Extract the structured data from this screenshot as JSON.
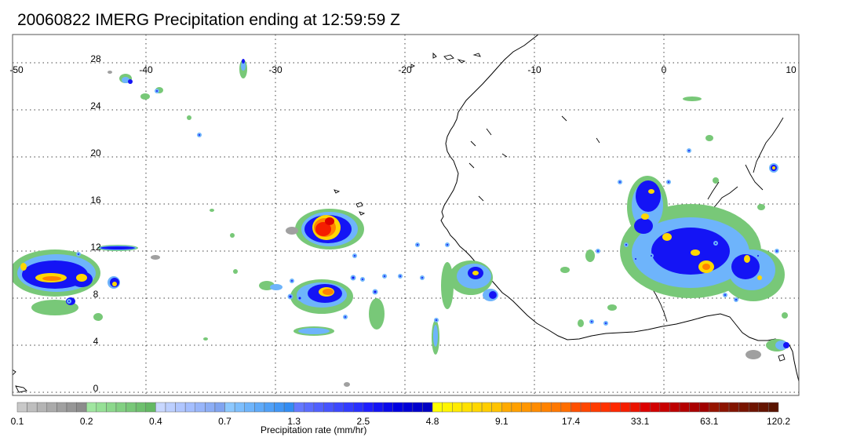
{
  "title": "20060822 IMERG Precipitation ending at 12:59:59 Z",
  "map": {
    "lon_range": [
      -50,
      10
    ],
    "lat_range": [
      -0.5,
      29.5
    ],
    "lon_ticks": [
      "-50",
      "-40",
      "-30",
      "-20",
      "-10",
      "0",
      "10"
    ],
    "lat_ticks": [
      "28",
      "24",
      "20",
      "16",
      "12",
      "8",
      "4",
      "0"
    ],
    "grid": "dotted",
    "coastline_color": "#000000"
  },
  "colorbar": {
    "label": "Precipitation rate (mm/hr)",
    "tick_labels": [
      "0.1",
      "0.2",
      "0.4",
      "0.7",
      "1.3",
      "2.5",
      "4.8",
      "9.1",
      "17.4",
      "33.1",
      "63.1",
      "120.2"
    ],
    "groups": [
      {
        "range": "0.1-0.2",
        "colors": [
          "#c8c8c8",
          "#bebebe",
          "#b4b4b4",
          "#aaaaaa",
          "#a0a0a0",
          "#969696",
          "#8c8c8c"
        ]
      },
      {
        "range": "0.2-0.4",
        "colors": [
          "#a0e6a0",
          "#96e096",
          "#8cd88c",
          "#82d082",
          "#78c878",
          "#6ec06e",
          "#64b864"
        ]
      },
      {
        "range": "0.4-0.7",
        "colors": [
          "#c8d7ff",
          "#bccfff",
          "#b0c6ff",
          "#a4beff",
          "#98b5fa",
          "#8cadf5",
          "#80a4f0"
        ]
      },
      {
        "range": "0.7-1.3",
        "colors": [
          "#8cc8ff",
          "#7dbefd",
          "#6eb4fb",
          "#5faaf9",
          "#50a0f7",
          "#4196f5",
          "#328cf3"
        ]
      },
      {
        "range": "1.3-2.5",
        "colors": [
          "#6478ff",
          "#5a6cff",
          "#5060ff",
          "#4654ff",
          "#3c48ff",
          "#323cff",
          "#2830ff"
        ]
      },
      {
        "range": "2.5-4.8",
        "colors": [
          "#1e1eff",
          "#1414f5",
          "#0a0aeb",
          "#0000e1",
          "#0000d7",
          "#0000cd",
          "#0000c3"
        ]
      },
      {
        "range": "4.8-9.1",
        "colors": [
          "#ffff00",
          "#fff500",
          "#ffeb00",
          "#ffe100",
          "#ffd700",
          "#ffcd00",
          "#ffc300"
        ]
      },
      {
        "range": "9.1-17.4",
        "colors": [
          "#ffaa00",
          "#ffa000",
          "#ff9600",
          "#ff8c00",
          "#ff8200",
          "#ff7800",
          "#ff6e00"
        ]
      },
      {
        "range": "17.4-33.1",
        "colors": [
          "#ff5000",
          "#ff4600",
          "#ff3c00",
          "#ff3200",
          "#ff2800",
          "#f51e00",
          "#eb1400"
        ]
      },
      {
        "range": "33.1-63.1",
        "colors": [
          "#dc0000",
          "#d20000",
          "#c80000",
          "#be0000",
          "#b40000",
          "#aa0000",
          "#a00000"
        ]
      },
      {
        "range": "63.1-120.2",
        "colors": [
          "#961400",
          "#8c1400",
          "#821400",
          "#781400",
          "#6e1400",
          "#641400",
          "#5a1400"
        ]
      }
    ]
  },
  "precipitation_cells": [
    {
      "lon": -29.5,
      "lat": 13.5,
      "peak_mm_hr": 33.1
    },
    {
      "lon": -25.5,
      "lat": 8.6,
      "peak_mm_hr": 9.1
    },
    {
      "lon": -44.5,
      "lat": 9.5,
      "peak_mm_hr": 9.1
    },
    {
      "lon": -48.5,
      "lat": 10.5,
      "peak_mm_hr": 4.8
    },
    {
      "lon": -42.0,
      "lat": 12.1,
      "peak_mm_hr": 4.8
    },
    {
      "lon": -40.0,
      "lat": 9.5,
      "peak_mm_hr": 4.8
    },
    {
      "lon": -14.5,
      "lat": 10.2,
      "peak_mm_hr": 4.8
    },
    {
      "lon": 4.0,
      "lat": 10.5,
      "peak_mm_hr": 9.1
    },
    {
      "lon": 1.0,
      "lat": 12.0,
      "peak_mm_hr": 4.8
    },
    {
      "lon": -1.0,
      "lat": 16.0,
      "peak_mm_hr": 4.8
    },
    {
      "lon": 7.0,
      "lat": 10.5,
      "peak_mm_hr": 4.8
    },
    {
      "lon": 8.5,
      "lat": 18.5,
      "peak_mm_hr": 4.8
    }
  ]
}
